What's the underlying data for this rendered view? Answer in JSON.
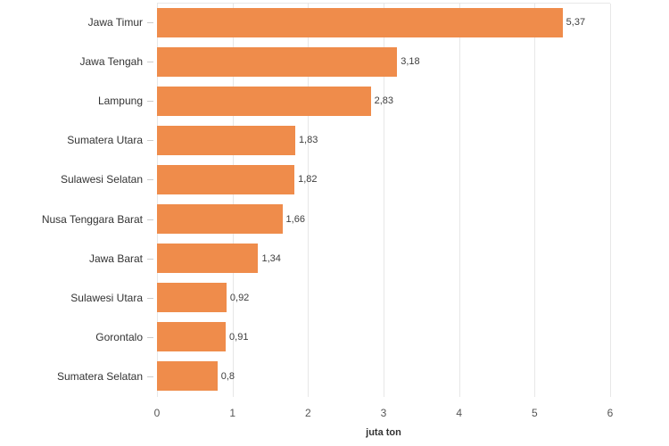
{
  "chart_data": {
    "type": "bar",
    "orientation": "horizontal",
    "title": "",
    "xlabel": "juta ton",
    "ylabel": "",
    "xlim": [
      0,
      6
    ],
    "x_ticks": [
      0,
      1,
      2,
      3,
      4,
      5,
      6
    ],
    "grid": true,
    "legend": false,
    "categories": [
      "Jawa Timur",
      "Jawa Tengah",
      "Lampung",
      "Sumatera Utara",
      "Sulawesi Selatan",
      "Nusa Tenggara Barat",
      "Jawa Barat",
      "Sulawesi Utara",
      "Gorontalo",
      "Sumatera Selatan"
    ],
    "values": [
      5.37,
      3.18,
      2.83,
      1.83,
      1.82,
      1.66,
      1.34,
      0.92,
      0.91,
      0.8
    ],
    "value_labels": [
      "5,37",
      "3,18",
      "2,83",
      "1,83",
      "1,82",
      "1,66",
      "1,34",
      "0,92",
      "0,91",
      "0,8"
    ],
    "colors": {
      "bar": "#ef8c4b",
      "gridline": "#e7e7e7",
      "tick_mark": "#cccccc",
      "category_text": "#333333",
      "value_text": "#3d3d3d",
      "axis_tick_text": "#555555",
      "axis_title_text": "#333333",
      "background": "#ffffff"
    }
  }
}
